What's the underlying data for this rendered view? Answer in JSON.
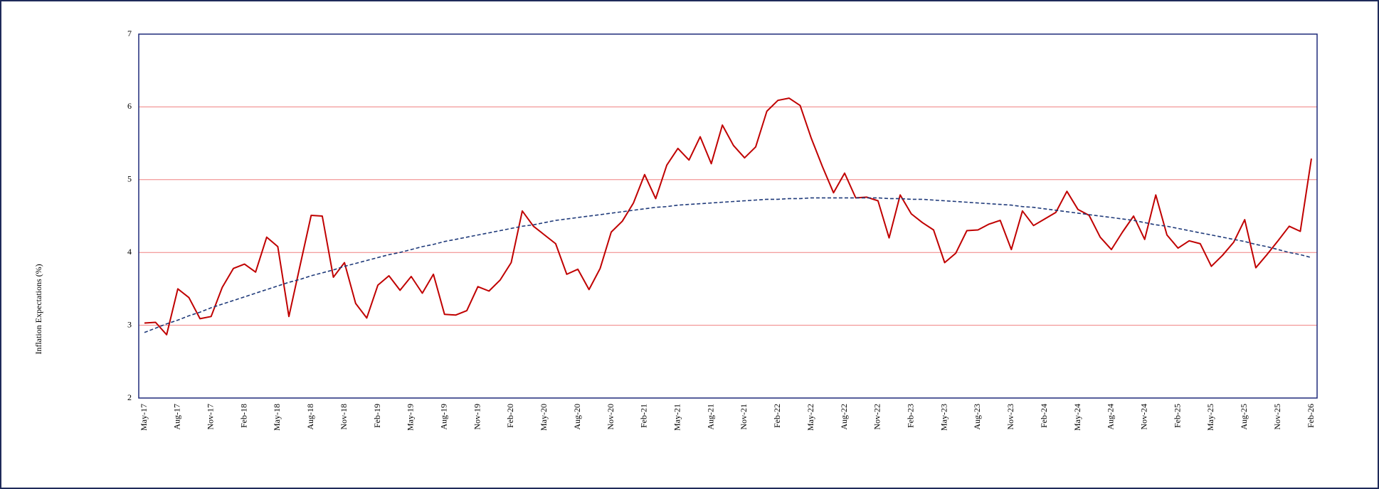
{
  "chart_data": {
    "type": "line",
    "y_label": "Inflation Expectations (%)",
    "categories": [
      "May-17",
      null,
      null,
      "Aug-17",
      null,
      null,
      "Nov-17",
      null,
      null,
      "Feb-18",
      null,
      null,
      "May-18",
      null,
      null,
      "Aug-18",
      null,
      null,
      "Nov-18",
      null,
      null,
      "Feb-19",
      null,
      null,
      "May-19",
      null,
      null,
      "Aug-19",
      null,
      null,
      "Nov-19",
      null,
      null,
      "Feb-20",
      null,
      null,
      "May-20",
      null,
      null,
      "Aug-20",
      null,
      null,
      "Nov-20",
      null,
      null,
      "Feb-21",
      null,
      null,
      "May-21",
      null,
      null,
      "Aug-21",
      null,
      null,
      "Nov-21",
      null,
      null,
      "Feb-22",
      null,
      null,
      "May-22",
      null,
      null,
      "Aug-22",
      null,
      null,
      "Nov-22",
      null,
      null,
      "Feb-23",
      null,
      null,
      "May-23",
      null,
      null,
      "Aug-23",
      null,
      null,
      "Nov-23",
      null,
      null,
      "Feb-24",
      null,
      null,
      "May-24",
      null,
      null,
      "Aug-24",
      null,
      null,
      "Nov-24",
      null,
      null,
      "Feb-25",
      null,
      null,
      "May-25",
      null,
      null,
      "Aug-25",
      null,
      null,
      "Nov-25",
      null,
      null,
      "Feb-26"
    ],
    "series": [
      {
        "color": "#c00000",
        "dashed": false,
        "values": [
          3.03,
          3.04,
          2.87,
          3.5,
          3.38,
          3.09,
          3.12,
          3.52,
          3.78,
          3.84,
          3.73,
          4.21,
          4.08,
          3.12,
          3.82,
          4.51,
          4.5,
          3.66,
          3.86,
          3.3,
          3.1,
          3.55,
          3.68,
          3.48,
          3.67,
          3.44,
          3.7,
          3.15,
          3.14,
          3.2,
          3.53,
          3.47,
          3.62,
          3.86,
          4.57,
          4.36,
          4.24,
          4.12,
          3.7,
          3.77,
          3.49,
          3.78,
          4.28,
          4.43,
          4.68,
          5.07,
          4.74,
          5.2,
          5.43,
          5.27,
          5.59,
          5.22,
          5.75,
          5.47,
          5.3,
          5.45,
          5.94,
          6.09,
          6.12,
          6.02,
          5.57,
          5.18,
          4.82,
          5.09,
          4.75,
          4.76,
          4.71,
          4.2,
          4.79,
          4.53,
          4.41,
          4.31,
          3.86,
          3.99,
          4.3,
          4.31,
          4.39,
          4.44,
          4.04,
          4.57,
          4.37,
          4.46,
          4.55,
          4.84,
          4.59,
          4.51,
          4.21,
          4.04,
          4.28,
          4.5,
          4.18,
          4.79,
          4.24,
          4.06,
          4.16,
          4.12,
          3.81,
          3.96,
          4.14,
          4.45,
          3.79,
          3.97,
          4.16,
          4.36,
          4.29,
          5.29
        ]
      },
      {
        "color": "#1f3a7a",
        "dashed": true,
        "values": [
          2.9,
          2.96,
          3.02,
          3.07,
          3.13,
          3.18,
          3.24,
          3.29,
          3.34,
          3.39,
          3.44,
          3.49,
          3.54,
          3.59,
          3.63,
          3.68,
          3.72,
          3.76,
          3.81,
          3.85,
          3.89,
          3.93,
          3.97,
          4.0,
          4.04,
          4.08,
          4.11,
          4.15,
          4.18,
          4.21,
          4.24,
          4.27,
          4.3,
          4.33,
          4.36,
          4.38,
          4.41,
          4.44,
          4.46,
          4.48,
          4.5,
          4.52,
          4.54,
          4.56,
          4.58,
          4.6,
          4.62,
          4.63,
          4.65,
          4.66,
          4.67,
          4.68,
          4.69,
          4.7,
          4.71,
          4.72,
          4.73,
          4.73,
          4.74,
          4.74,
          4.75,
          4.75,
          4.75,
          4.75,
          4.75,
          4.75,
          4.75,
          4.74,
          4.74,
          4.73,
          4.73,
          4.72,
          4.71,
          4.7,
          4.69,
          4.68,
          4.67,
          4.66,
          4.65,
          4.63,
          4.62,
          4.6,
          4.58,
          4.56,
          4.54,
          4.52,
          4.5,
          4.48,
          4.46,
          4.44,
          4.41,
          4.38,
          4.36,
          4.33,
          4.3,
          4.27,
          4.24,
          4.21,
          4.18,
          4.15,
          4.11,
          4.08,
          4.04,
          4.0,
          3.97,
          3.93
        ]
      }
    ],
    "ylim": [
      2,
      7
    ],
    "yticks": [
      2,
      3,
      4,
      5,
      6,
      7
    ],
    "grid": true,
    "grid_color": "#f08080"
  }
}
